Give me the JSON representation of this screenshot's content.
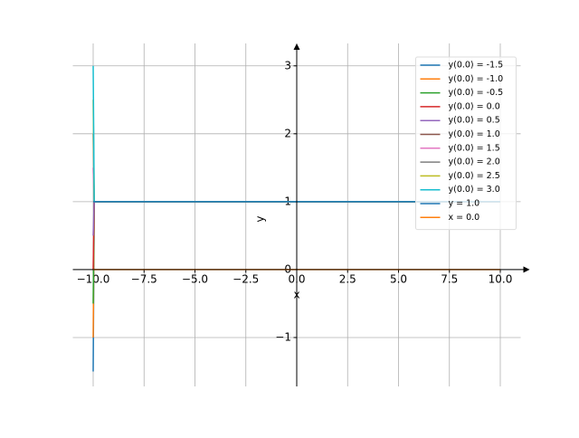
{
  "chart_data": {
    "type": "line",
    "xlabel": "x",
    "ylabel": "y",
    "xlim": [
      -11,
      11
    ],
    "ylim": [
      -1.72,
      3.33
    ],
    "xticks": [
      {
        "value": -10,
        "label": "−10.0"
      },
      {
        "value": -7.5,
        "label": "−7.5"
      },
      {
        "value": -5,
        "label": "−5.0"
      },
      {
        "value": -2.5,
        "label": "−2.5"
      },
      {
        "value": 0,
        "label": "0.0"
      },
      {
        "value": 2.5,
        "label": "2.5"
      },
      {
        "value": 5,
        "label": "5.0"
      },
      {
        "value": 7.5,
        "label": "7.5"
      },
      {
        "value": 10,
        "label": "10.0"
      }
    ],
    "yticks": [
      {
        "value": -1,
        "label": "−1"
      },
      0,
      1,
      2,
      3
    ],
    "grid": true,
    "legend": "upper right",
    "series": [
      {
        "name": "y(0.0) = -1.5",
        "color": "#1f77b4",
        "x": [
          -10,
          -9.95,
          10
        ],
        "values": [
          -1.5,
          1,
          1
        ]
      },
      {
        "name": "y(0.0) = -1.0",
        "color": "#ff7f0e",
        "x": [
          -10,
          -9.95,
          10
        ],
        "values": [
          -1,
          1,
          1
        ]
      },
      {
        "name": "y(0.0) = -0.5",
        "color": "#2ca02c",
        "x": [
          -10,
          -9.95,
          10
        ],
        "values": [
          -0.5,
          1,
          1
        ]
      },
      {
        "name": "y(0.0) = 0.0",
        "color": "#d62728",
        "x": [
          -10,
          -9.95,
          10
        ],
        "values": [
          0,
          1,
          1
        ]
      },
      {
        "name": "y(0.0) = 0.5",
        "color": "#9467bd",
        "x": [
          -10,
          -9.95,
          10
        ],
        "values": [
          0.5,
          1,
          1
        ]
      },
      {
        "name": "y(0.0) = 1.0",
        "color": "#8c564b",
        "x": [
          -10,
          -9.95,
          10
        ],
        "values": [
          1,
          1,
          1
        ]
      },
      {
        "name": "y(0.0) = 1.5",
        "color": "#e377c2",
        "x": [
          -10,
          -9.95,
          10
        ],
        "values": [
          1.5,
          1,
          1
        ]
      },
      {
        "name": "y(0.0) = 2.0",
        "color": "#7f7f7f",
        "x": [
          -10,
          -9.95,
          10
        ],
        "values": [
          2,
          1,
          1
        ]
      },
      {
        "name": "y(0.0) = 2.5",
        "color": "#bcbd22",
        "x": [
          -10,
          -9.95,
          10
        ],
        "values": [
          2.5,
          1,
          1
        ]
      },
      {
        "name": "y(0.0) = 3.0",
        "color": "#17becf",
        "x": [
          -10,
          -9.95,
          10
        ],
        "values": [
          3,
          1,
          1
        ]
      },
      {
        "name": "y = 1.0",
        "color": "#1f77b4",
        "x": [
          -10,
          10
        ],
        "values": [
          1,
          1
        ]
      },
      {
        "name": "x = 0.0",
        "color": "#ff7f0e",
        "x": [
          -10,
          10
        ],
        "values": [
          0,
          0
        ]
      }
    ]
  }
}
